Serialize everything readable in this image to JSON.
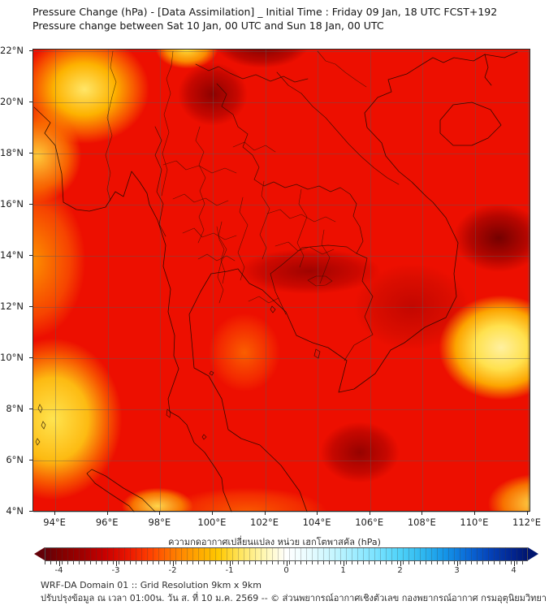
{
  "header": {
    "title_line1": "Pressure Change (hPa) - [Data Assimilation] _ Initial Time : Friday 09 Jan, 18 UTC FCST+192",
    "title_line2": "Pressure change between Sat 10 Jan, 00 UTC and Sun 18 Jan, 00 UTC"
  },
  "footer": {
    "line1": "WRF-DA Domain 01 :: Grid Resolution 9km x 9km",
    "line2": "ปรับปรุงข้อมูล ณ เวลา 01:00น. วัน ส. ที่ 10 ม.ค. 2569 -- © ส่วนพยากรณ์อากาศเชิงตัวเลข กองพยากรณ์อากาศ กรมอุตุนิยมวิทยา"
  },
  "chart_data": {
    "type": "heatmap",
    "subtype": "filled-contour-geographic-map",
    "title": "Pressure Change (hPa) - [Data Assimilation] _ Initial Time : Friday 09 Jan, 18 UTC FCST+192",
    "subtitle": "Pressure change between Sat 10 Jan, 00 UTC and Sun 18 Jan, 00 UTC",
    "grid": true,
    "x_axis": {
      "range": [
        93.16,
        112.14
      ],
      "tick_values": [
        94,
        96,
        98,
        100,
        102,
        104,
        106,
        108,
        110,
        112
      ],
      "tick_labels": [
        "94°E",
        "96°E",
        "98°E",
        "100°E",
        "102°E",
        "104°E",
        "106°E",
        "108°E",
        "110°E",
        "112°E"
      ]
    },
    "y_axis": {
      "range": [
        3.96,
        22.06
      ],
      "tick_values": [
        22,
        20,
        18,
        16,
        14,
        12,
        10,
        8,
        6,
        4
      ],
      "tick_labels": [
        "22°N",
        "20°N",
        "18°N",
        "16°N",
        "14°N",
        "12°N",
        "10°N",
        "8°N",
        "6°N",
        "4°N"
      ]
    },
    "colorbar": {
      "label": "ความกดอากาศเปลี่ยนแปลง หน่วย เฮกโตพาสคัล (hPa)",
      "units": "hPa",
      "range": [
        -4.25,
        4.25
      ],
      "tick_values": [
        -4,
        -3,
        -2,
        -1,
        0,
        1,
        2,
        3,
        4
      ],
      "extend": "both",
      "stops": [
        {
          "v": -4.25,
          "c": "#640008"
        },
        {
          "v": -4.0,
          "c": "#7f0000"
        },
        {
          "v": -3.6,
          "c": "#a00000"
        },
        {
          "v": -3.2,
          "c": "#c80000"
        },
        {
          "v": -2.8,
          "c": "#ea1500"
        },
        {
          "v": -2.4,
          "c": "#ff4000"
        },
        {
          "v": -2.0,
          "c": "#ff7800"
        },
        {
          "v": -1.6,
          "c": "#ffa300"
        },
        {
          "v": -1.2,
          "c": "#ffc800"
        },
        {
          "v": -0.8,
          "c": "#ffe560"
        },
        {
          "v": -0.4,
          "c": "#fff7b0"
        },
        {
          "v": 0.0,
          "c": "#ffffff"
        },
        {
          "v": 0.4,
          "c": "#e8fcff"
        },
        {
          "v": 0.8,
          "c": "#c8f6ff"
        },
        {
          "v": 1.2,
          "c": "#a0edff"
        },
        {
          "v": 1.6,
          "c": "#78e2ff"
        },
        {
          "v": 2.0,
          "c": "#4fd2f8"
        },
        {
          "v": 2.4,
          "c": "#2fb8f0"
        },
        {
          "v": 2.8,
          "c": "#1495e8"
        },
        {
          "v": 3.2,
          "c": "#0a6ad8"
        },
        {
          "v": 3.6,
          "c": "#0442b8"
        },
        {
          "v": 4.0,
          "c": "#022590"
        },
        {
          "v": 4.25,
          "c": "#001670"
        }
      ]
    },
    "field_base": {
      "value_hpa": -2.5,
      "color": "#ed0f00"
    },
    "features": [
      {
        "name": "yellow-spot-north",
        "lon": 99.0,
        "lat": 22.1,
        "rx_deg": 1.7,
        "ry_deg": 1.1,
        "value_hpa": -0.9,
        "grad": [
          [
            0,
            "#ffe03a"
          ],
          [
            45,
            "rgba(255,180,0,0.75)"
          ],
          [
            70,
            "rgba(255,120,0,0)"
          ]
        ]
      },
      {
        "name": "dark-min-top-center",
        "lon": 101.9,
        "lat": 22.3,
        "rx_deg": 2.4,
        "ry_deg": 1.3,
        "value_hpa": -3.9,
        "grad": [
          [
            0,
            "rgba(112,0,0,0.95)"
          ],
          [
            55,
            "rgba(150,0,0,0.55)"
          ],
          [
            75,
            "rgba(150,0,0,0)"
          ]
        ]
      },
      {
        "name": "dark-min-northwest",
        "lon": 100.0,
        "lat": 20.3,
        "rx_deg": 1.7,
        "ry_deg": 1.6,
        "value_hpa": -3.6,
        "grad": [
          [
            0,
            "rgba(130,0,0,0.9)"
          ],
          [
            55,
            "rgba(160,0,0,0.5)"
          ],
          [
            78,
            "rgba(160,0,0,0)"
          ]
        ]
      },
      {
        "name": "yellow-bay-of-bengal",
        "lon": 95.1,
        "lat": 20.5,
        "rx_deg": 2.9,
        "ry_deg": 2.5,
        "value_hpa": -1.0,
        "grad": [
          [
            0,
            "#ffe668"
          ],
          [
            40,
            "rgba(255,196,0,0.9)"
          ],
          [
            68,
            "rgba(255,130,0,0.55)"
          ],
          [
            85,
            "rgba(255,110,0,0)"
          ]
        ]
      },
      {
        "name": "yellow-coast-west",
        "lon": 93.3,
        "lat": 17.9,
        "rx_deg": 2.1,
        "ry_deg": 2.3,
        "value_hpa": -1.2,
        "grad": [
          [
            0,
            "rgba(255,210,60,0.95)"
          ],
          [
            55,
            "rgba(255,150,0,0.6)"
          ],
          [
            80,
            "rgba(255,150,0,0)"
          ]
        ]
      },
      {
        "name": "orange-west-column",
        "lon": 93.1,
        "lat": 13.8,
        "rx_deg": 2.4,
        "ry_deg": 3.6,
        "value_hpa": -1.5,
        "grad": [
          [
            0,
            "rgba(255,158,0,0.9)"
          ],
          [
            60,
            "rgba(255,120,0,0.5)"
          ],
          [
            85,
            "rgba(255,120,0,0)"
          ]
        ]
      },
      {
        "name": "yellow-andaman-south",
        "lon": 93.9,
        "lat": 7.6,
        "rx_deg": 3.0,
        "ry_deg": 3.6,
        "value_hpa": -0.9,
        "grad": [
          [
            0,
            "#ffe44f"
          ],
          [
            45,
            "rgba(255,205,20,0.9)"
          ],
          [
            70,
            "rgba(255,140,0,0.55)"
          ],
          [
            88,
            "rgba(255,140,0,0)"
          ]
        ]
      },
      {
        "name": "yellow-streak-sumatra",
        "lon": 97.9,
        "lat": 4.2,
        "rx_deg": 1.7,
        "ry_deg": 0.9,
        "value_hpa": -0.8,
        "grad": [
          [
            0,
            "rgba(255,224,80,0.95)"
          ],
          [
            55,
            "rgba(255,180,0,0.6)"
          ],
          [
            80,
            "rgba(255,180,0,0)"
          ]
        ]
      },
      {
        "name": "yellow-south-china-sea",
        "lon": 111.0,
        "lat": 10.4,
        "rx_deg": 2.8,
        "ry_deg": 2.4,
        "value_hpa": -0.7,
        "grad": [
          [
            0,
            "#fff0a0"
          ],
          [
            35,
            "#ffe14e"
          ],
          [
            62,
            "rgba(255,190,0,0.85)"
          ],
          [
            85,
            "rgba(255,130,0,0)"
          ]
        ]
      },
      {
        "name": "yellow-bottom-right",
        "lon": 112.3,
        "lat": 4.3,
        "rx_deg": 2.2,
        "ry_deg": 1.4,
        "value_hpa": -0.9,
        "grad": [
          [
            0,
            "rgba(255,226,79,0.95)"
          ],
          [
            55,
            "rgba(255,180,0,0.6)"
          ],
          [
            82,
            "rgba(255,180,0,0)"
          ]
        ]
      },
      {
        "name": "orange-gulf",
        "lon": 101.2,
        "lat": 10.2,
        "rx_deg": 1.6,
        "ry_deg": 1.8,
        "value_hpa": -1.9,
        "grad": [
          [
            0,
            "rgba(255,120,0,0.75)"
          ],
          [
            60,
            "rgba(255,90,0,0.35)"
          ],
          [
            85,
            "rgba(255,90,0,0)"
          ]
        ]
      },
      {
        "name": "orange-bottom-band",
        "lon": 101.3,
        "lat": 4.0,
        "rx_deg": 3.6,
        "ry_deg": 1.1,
        "value_hpa": -1.6,
        "grad": [
          [
            0,
            "rgba(255,120,0,0.7)"
          ],
          [
            60,
            "rgba(255,100,0,0.35)"
          ],
          [
            85,
            "rgba(255,100,0,0)"
          ]
        ]
      },
      {
        "name": "dark-min-east",
        "lon": 110.9,
        "lat": 14.7,
        "rx_deg": 2.2,
        "ry_deg": 1.7,
        "value_hpa": -4.0,
        "grad": [
          [
            0,
            "rgba(110,0,0,0.95)"
          ],
          [
            50,
            "rgba(145,0,0,0.6)"
          ],
          [
            78,
            "rgba(145,0,0,0)"
          ]
        ]
      },
      {
        "name": "dark-band-central",
        "lon": 103.7,
        "lat": 13.4,
        "rx_deg": 3.4,
        "ry_deg": 1.1,
        "value_hpa": -3.5,
        "grad": [
          [
            0,
            "rgba(140,0,0,0.8)"
          ],
          [
            55,
            "rgba(165,0,0,0.45)"
          ],
          [
            80,
            "rgba(165,0,0,0)"
          ]
        ]
      },
      {
        "name": "dark-bridge-southeast",
        "lon": 107.6,
        "lat": 12.0,
        "rx_deg": 2.6,
        "ry_deg": 2.0,
        "value_hpa": -3.2,
        "grad": [
          [
            0,
            "rgba(160,0,0,0.55)"
          ],
          [
            60,
            "rgba(180,10,0,0.3)"
          ],
          [
            85,
            "rgba(180,10,0,0)"
          ]
        ]
      },
      {
        "name": "dark-min-south",
        "lon": 105.6,
        "lat": 6.3,
        "rx_deg": 1.9,
        "ry_deg": 1.5,
        "value_hpa": -3.5,
        "grad": [
          [
            0,
            "rgba(135,0,0,0.85)"
          ],
          [
            55,
            "rgba(160,0,0,0.5)"
          ],
          [
            80,
            "rgba(160,0,0,0)"
          ]
        ]
      }
    ]
  }
}
